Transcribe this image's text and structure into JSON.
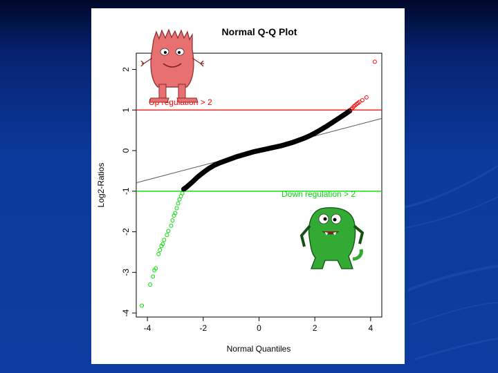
{
  "colors": {
    "background": "#0c3c9f",
    "panel": "#ffffff",
    "sample_points": "#000000",
    "up_regulation": "#ff0000",
    "down_regulation": "#00dd00",
    "reference_line": "#555555",
    "up_monster": "#e87070",
    "down_monster": "#33aa33"
  },
  "icons": {
    "up_monster": "pink-furry-monster-illustration",
    "down_monster": "green-monster-illustration"
  },
  "chart_data": {
    "type": "scatter",
    "title": "Normal Q-Q Plot",
    "xlabel": "Normal Quantiles",
    "ylabel": "Log2-Ratios",
    "xlim": [
      -4.4,
      4.4
    ],
    "ylim": [
      -4.1,
      2.4
    ],
    "xticks": [
      -4,
      -2,
      0,
      2,
      4
    ],
    "yticks": [
      2,
      1,
      0,
      -1,
      -2,
      -3,
      -4
    ],
    "x_tick_labels": [
      "-4",
      "-2",
      "0",
      "2",
      "4"
    ],
    "y_tick_labels": [
      "2",
      "1",
      "0",
      "-1",
      "-2",
      "-3",
      "-4"
    ],
    "grid": false,
    "reference_line": {
      "intercept": 0.0,
      "slope": 0.18
    },
    "thresholds": [
      {
        "name": "up",
        "y": 1,
        "label": "Up regulation > 2",
        "color": "#ff0000"
      },
      {
        "name": "down",
        "y": -1,
        "label": "Down regulation > 2",
        "color": "#00dd00"
      }
    ],
    "series": [
      {
        "color": "#000000",
        "points": [
          [
            -2.7,
            -0.95
          ],
          [
            -2.6,
            -0.9
          ],
          [
            -2.4,
            -0.78
          ],
          [
            -2.2,
            -0.65
          ],
          [
            -2.0,
            -0.54
          ],
          [
            -1.8,
            -0.44
          ],
          [
            -1.6,
            -0.36
          ],
          [
            -1.4,
            -0.3
          ],
          [
            -1.2,
            -0.25
          ],
          [
            -1.0,
            -0.2
          ],
          [
            -0.8,
            -0.15
          ],
          [
            -0.6,
            -0.11
          ],
          [
            -0.4,
            -0.07
          ],
          [
            -0.2,
            -0.03
          ],
          [
            0.0,
            0.0
          ],
          [
            0.2,
            0.03
          ],
          [
            0.4,
            0.06
          ],
          [
            0.6,
            0.09
          ],
          [
            0.8,
            0.12
          ],
          [
            1.0,
            0.16
          ],
          [
            1.2,
            0.2
          ],
          [
            1.4,
            0.25
          ],
          [
            1.6,
            0.3
          ],
          [
            1.8,
            0.36
          ],
          [
            2.0,
            0.43
          ],
          [
            2.2,
            0.51
          ],
          [
            2.4,
            0.59
          ],
          [
            2.6,
            0.68
          ],
          [
            2.8,
            0.77
          ],
          [
            3.0,
            0.86
          ],
          [
            3.15,
            0.93
          ],
          [
            3.25,
            0.98
          ]
        ]
      },
      {
        "color": "#ff0000",
        "points": [
          [
            3.3,
            1.02
          ],
          [
            3.35,
            1.05
          ],
          [
            3.4,
            1.09
          ],
          [
            3.45,
            1.12
          ],
          [
            3.5,
            1.15
          ],
          [
            3.55,
            1.17
          ],
          [
            3.6,
            1.2
          ],
          [
            3.7,
            1.24
          ],
          [
            3.85,
            1.31
          ],
          [
            4.15,
            2.19
          ]
        ]
      },
      {
        "color": "#00dd00",
        "points": [
          [
            -2.75,
            -1.05
          ],
          [
            -2.8,
            -1.12
          ],
          [
            -2.85,
            -1.2
          ],
          [
            -2.9,
            -1.3
          ],
          [
            -2.95,
            -1.42
          ],
          [
            -3.0,
            -1.54
          ],
          [
            -3.05,
            -1.6
          ],
          [
            -3.1,
            -1.72
          ],
          [
            -3.15,
            -1.85
          ],
          [
            -3.25,
            -1.98
          ],
          [
            -3.3,
            -2.08
          ],
          [
            -3.4,
            -2.2
          ],
          [
            -3.45,
            -2.3
          ],
          [
            -3.5,
            -2.35
          ],
          [
            -3.55,
            -2.45
          ],
          [
            -3.6,
            -2.55
          ],
          [
            -3.7,
            -2.9
          ],
          [
            -3.75,
            -2.95
          ],
          [
            -3.8,
            -3.1
          ],
          [
            -3.9,
            -3.3
          ],
          [
            -4.2,
            -3.82
          ]
        ]
      }
    ]
  }
}
